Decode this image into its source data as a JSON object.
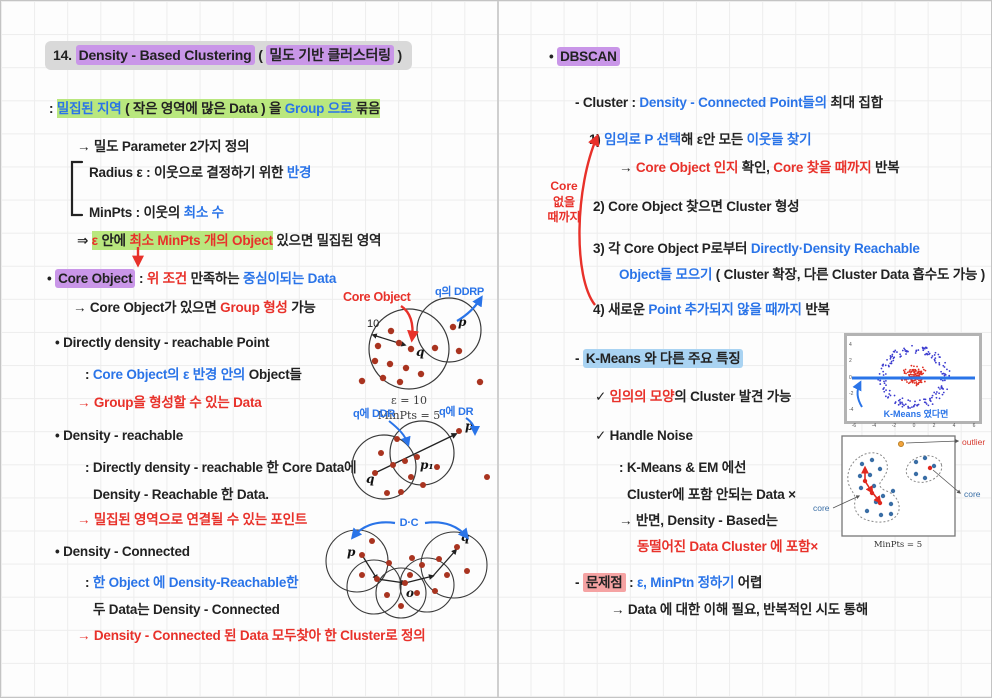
{
  "colors": {
    "ink_black": "#222222",
    "ink_blue": "#2a74e8",
    "ink_red": "#e8312a",
    "highlight_purple": "#c996e8",
    "highlight_green": "#b9e77e",
    "highlight_blue": "#a9d3f2",
    "highlight_pink": "#f5a3a3",
    "dot_maroon": "#a93420",
    "outlier_orange": "#f2a33c"
  },
  "left": {
    "title": {
      "segments": [
        {
          "t": "14. ",
          "s": "k"
        },
        {
          "t": "Density - Based Clustering",
          "s": "k hp"
        },
        {
          "t": " ( ",
          "s": "k"
        },
        {
          "t": "밀도 기반 클러스터링",
          "s": "k hp"
        },
        {
          "t": " )",
          "s": "k"
        }
      ]
    },
    "lines": {
      "dense_region": {
        "segments": [
          {
            "t": ": ",
            "s": "k"
          },
          {
            "t": "밀집된 지역",
            "s": "b g"
          },
          {
            "t": " ( 작은 영역에 많은 Data ) 을 ",
            "s": "k g"
          },
          {
            "t": "Group 으로",
            "s": "b g"
          },
          {
            "t": " 묶음",
            "s": "k g"
          }
        ]
      },
      "param": {
        "segments": [
          {
            "t": "→ 밀도 Parameter 2가지 정의",
            "s": "k"
          }
        ]
      },
      "radius": {
        "segments": [
          {
            "t": "Radius ε : 이웃으로 결정하기 위한 ",
            "s": "k"
          },
          {
            "t": "반경",
            "s": "b"
          }
        ]
      },
      "minpts": {
        "segments": [
          {
            "t": "MinPts : 이웃의 ",
            "s": "k"
          },
          {
            "t": "최소 수",
            "s": "b"
          }
        ]
      },
      "condition": {
        "segments": [
          {
            "t": "⇒ ",
            "s": "k"
          },
          {
            "t": "ε",
            "s": "r g"
          },
          {
            "t": " 안에 ",
            "s": "k g"
          },
          {
            "t": "최소 MinPts 개의 Object",
            "s": "r g"
          },
          {
            "t": " 있으면 밀집된 영역",
            "s": "k"
          }
        ]
      },
      "core_object": {
        "segments": [
          {
            "t": "• ",
            "s": "k"
          },
          {
            "t": "Core Object",
            "s": "k hp"
          },
          {
            "t": " : ",
            "s": "k"
          },
          {
            "t": "위 조건",
            "s": "r"
          },
          {
            "t": " 만족하는 ",
            "s": "k"
          },
          {
            "t": "중심이되는 Data",
            "s": "b"
          }
        ]
      },
      "core_group": {
        "segments": [
          {
            "t": "→ Core Object가 있으면 ",
            "s": "k"
          },
          {
            "t": "Group 형성",
            "s": "r"
          },
          {
            "t": " 가능",
            "s": "k"
          }
        ]
      },
      "ddrp_title": {
        "segments": [
          {
            "t": "• Directly density - reachable Point",
            "s": "k"
          }
        ]
      },
      "ddrp_def": {
        "segments": [
          {
            "t": ": ",
            "s": "k"
          },
          {
            "t": "Core Object의 ε 반경 안의",
            "s": "b"
          },
          {
            "t": " Object들",
            "s": "k"
          }
        ]
      },
      "ddrp_note": {
        "segments": [
          {
            "t": "→ Group을 형성할 수 있는 Data",
            "s": "r"
          }
        ]
      },
      "dr_title": {
        "segments": [
          {
            "t": "• Density - reachable",
            "s": "k"
          }
        ]
      },
      "dr_def1": {
        "segments": [
          {
            "t": ": Directly density - reachable 한 Core Data에",
            "s": "k"
          }
        ]
      },
      "dr_def2": {
        "segments": [
          {
            "t": "Density - Reachable 한 Data.",
            "s": "k"
          }
        ]
      },
      "dr_note": {
        "segments": [
          {
            "t": "→ 밀집된 영역으로 연결될 수 있는 포인트",
            "s": "r"
          }
        ]
      },
      "dc_title": {
        "segments": [
          {
            "t": "• Density - Connected",
            "s": "k"
          }
        ]
      },
      "dc_def1": {
        "segments": [
          {
            "t": ": ",
            "s": "k"
          },
          {
            "t": "한 Object 에 Density-Reachable한",
            "s": "b"
          }
        ]
      },
      "dc_def2": {
        "segments": [
          {
            "t": "두 Data는 Density - Connected",
            "s": "k"
          }
        ]
      },
      "dc_note": {
        "segments": [
          {
            "t": "→ Density - Connected 된 Data 모두찾아 한 Cluster로 정의",
            "s": "r"
          }
        ]
      }
    }
  },
  "right": {
    "margin_note": "Core\n없을\n때까지",
    "lines": {
      "dbscan": {
        "segments": [
          {
            "t": "• ",
            "s": "k"
          },
          {
            "t": "DBSCAN",
            "s": "k hp"
          }
        ]
      },
      "cluster_def": {
        "segments": [
          {
            "t": "- Cluster : ",
            "s": "k"
          },
          {
            "t": "Density - Connected Point들의",
            "s": "b"
          },
          {
            "t": " 최대 집합",
            "s": "k"
          }
        ]
      },
      "step1": {
        "segments": [
          {
            "t": "1) ",
            "s": "k"
          },
          {
            "t": "임의로 P 선택",
            "s": "b"
          },
          {
            "t": "해 ε안 모든 ",
            "s": "k"
          },
          {
            "t": "이웃들 찾기",
            "s": "b"
          }
        ]
      },
      "step1_note": {
        "segments": [
          {
            "t": "→ ",
            "s": "k"
          },
          {
            "t": "Core Object 인지",
            "s": "r"
          },
          {
            "t": " 확인, ",
            "s": "k"
          },
          {
            "t": "Core 찾을 때까지",
            "s": "r"
          },
          {
            "t": " 반복",
            "s": "k"
          }
        ]
      },
      "step2": {
        "segments": [
          {
            "t": "2) Core Object 찾으면 Cluster 형성",
            "s": "k"
          }
        ]
      },
      "step3a": {
        "segments": [
          {
            "t": "3) 각 Core Object P로부터 ",
            "s": "k"
          },
          {
            "t": "Directly·Density Reachable",
            "s": "b"
          }
        ]
      },
      "step3b": {
        "segments": [
          {
            "t": "Object들 모으기",
            "s": "b"
          },
          {
            "t": " ( Cluster 확장, 다른 Cluster Data 흡수도 가능 )",
            "s": "k"
          }
        ]
      },
      "step4": {
        "segments": [
          {
            "t": "4) 새로운 ",
            "s": "k"
          },
          {
            "t": "Point 추가되지 않을 때까지",
            "s": "b"
          },
          {
            "t": " 반복",
            "s": "k"
          }
        ]
      },
      "kmeans_diff": {
        "segments": [
          {
            "t": "- ",
            "s": "k"
          },
          {
            "t": "K-Means 와 다른 주요 특징",
            "s": "k hb"
          }
        ]
      },
      "shape": {
        "segments": [
          {
            "t": "✓ ",
            "s": "k"
          },
          {
            "t": "임의의 모양",
            "s": "r"
          },
          {
            "t": "의 Cluster 발견 가능",
            "s": "k"
          }
        ]
      },
      "noise_title": {
        "segments": [
          {
            "t": "✓ Handle Noise",
            "s": "k"
          }
        ]
      },
      "noise1": {
        "segments": [
          {
            "t": ": K-Means & EM 에선",
            "s": "k"
          }
        ]
      },
      "noise2": {
        "segments": [
          {
            "t": "Cluster에 포함 안되는 Data ×",
            "s": "k"
          }
        ]
      },
      "noise3": {
        "segments": [
          {
            "t": "→ 반면, Density - Based는",
            "s": "k"
          }
        ]
      },
      "noise4": {
        "segments": [
          {
            "t": "동떨어진 Data Cluster 에 포함×",
            "s": "r"
          }
        ]
      },
      "problem": {
        "segments": [
          {
            "t": "- ",
            "s": "k"
          },
          {
            "t": "문제점",
            "s": "k hk"
          },
          {
            "t": " : ",
            "s": "k"
          },
          {
            "t": "ε, MinPtn 정하기",
            "s": "b"
          },
          {
            "t": " 어렵",
            "s": "k"
          }
        ]
      },
      "problem_note": {
        "segments": [
          {
            "t": "→ Data 에 대한 이해 필요, 반복적인 시도 통해",
            "s": "k"
          }
        ]
      }
    }
  },
  "d1": {
    "core_label": "Core Object",
    "ddrp_label": "q의 DDRP",
    "radius": "10",
    "p": "p",
    "q": "q",
    "eps": "ε = 10",
    "minpts": "MinPts = 5"
  },
  "d2": {
    "ddr": "q에 DDR",
    "dr": "q에 DR",
    "p": "p",
    "p1": "p₁",
    "q": "q"
  },
  "d3": {
    "dc": "D·C",
    "p": "p",
    "o": "o",
    "q": "q"
  },
  "scatter": {
    "annotation": "K-Means 였다면",
    "y_ticks": [
      "4",
      "2",
      "0",
      "-2",
      "-4"
    ],
    "x_ticks": [
      "-6",
      "-4",
      "-2",
      "0",
      "2",
      "4",
      "6"
    ]
  },
  "noise_diagram": {
    "outlier_label": "outlier",
    "core_label_left": "core",
    "core_label_right": "core",
    "caption": "MinPts = 5"
  }
}
